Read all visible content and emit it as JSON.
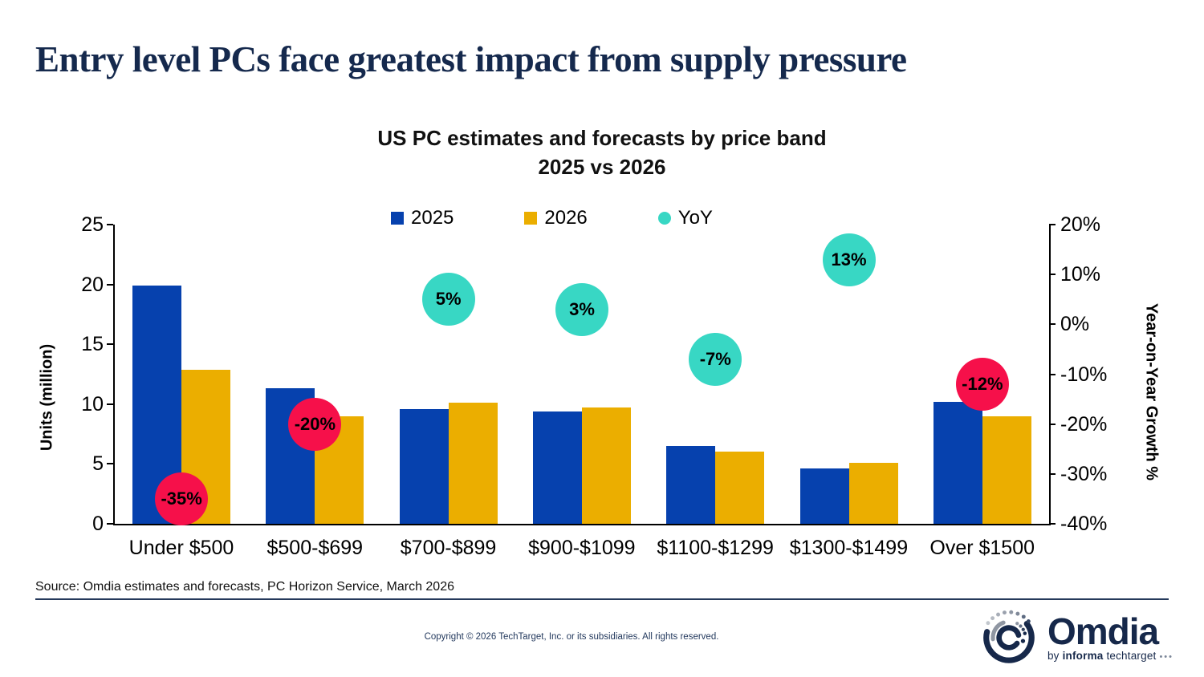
{
  "page": {
    "headline": "Entry level PCs face greatest impact from supply pressure",
    "source": "Source: Omdia estimates and forecasts, PC Horizon Service, March 2026",
    "copyright": "Copyright © 2026 TechTarget, Inc. or its subsidiaries. All rights reserved.",
    "logo": {
      "brand": "Omdia",
      "byline_by": "by",
      "byline_informa": "informa",
      "byline_techtarget": "techtarget",
      "byline_dots": "•••"
    }
  },
  "chart_data": {
    "type": "bar",
    "title": "US PC estimates and forecasts by price band",
    "subtitle": "2025 vs 2026",
    "categories": [
      "Under $500",
      "$500-$699",
      "$700-$899",
      "$900-$1099",
      "$1100-$1299",
      "$1300-$1499",
      "Over $1500"
    ],
    "series": [
      {
        "name": "2025",
        "color": "#0641AE",
        "values": [
          19.9,
          11.3,
          9.6,
          9.4,
          6.5,
          4.6,
          10.2
        ]
      },
      {
        "name": "2026",
        "color": "#EBAE00",
        "values": [
          12.9,
          9.0,
          10.1,
          9.7,
          6.0,
          5.1,
          9.0
        ]
      }
    ],
    "yoy": {
      "name": "YoY",
      "values": [
        -35,
        -20,
        5,
        3,
        -7,
        13,
        -12
      ],
      "labels": [
        "-35%",
        "-20%",
        "5%",
        "3%",
        "-7%",
        "13%",
        "-12%"
      ],
      "colors": [
        "#F6104A",
        "#F6104A",
        "#38D7C4",
        "#38D7C4",
        "#38D7C4",
        "#38D7C4",
        "#F6104A"
      ]
    },
    "left_axis": {
      "label": "Units (million)",
      "min": 0,
      "max": 25,
      "ticks": [
        25,
        20,
        15,
        10,
        5,
        0
      ]
    },
    "right_axis": {
      "label": "Year-on-Year Growth %",
      "min": -40,
      "max": 20,
      "ticks": [
        20,
        10,
        0,
        -10,
        -20,
        -30,
        -40
      ],
      "tick_labels": [
        "20%",
        "10%",
        "0%",
        "-10%",
        "-20%",
        "-30%",
        "-40%"
      ]
    },
    "legend": [
      {
        "label": "2025",
        "color": "#0641AE",
        "shape": "square"
      },
      {
        "label": "2026",
        "color": "#EBAE00",
        "shape": "square"
      },
      {
        "label": "YoY",
        "color": "#38D7C4",
        "shape": "circle"
      }
    ],
    "grid": false,
    "legend_position": "top-center"
  }
}
